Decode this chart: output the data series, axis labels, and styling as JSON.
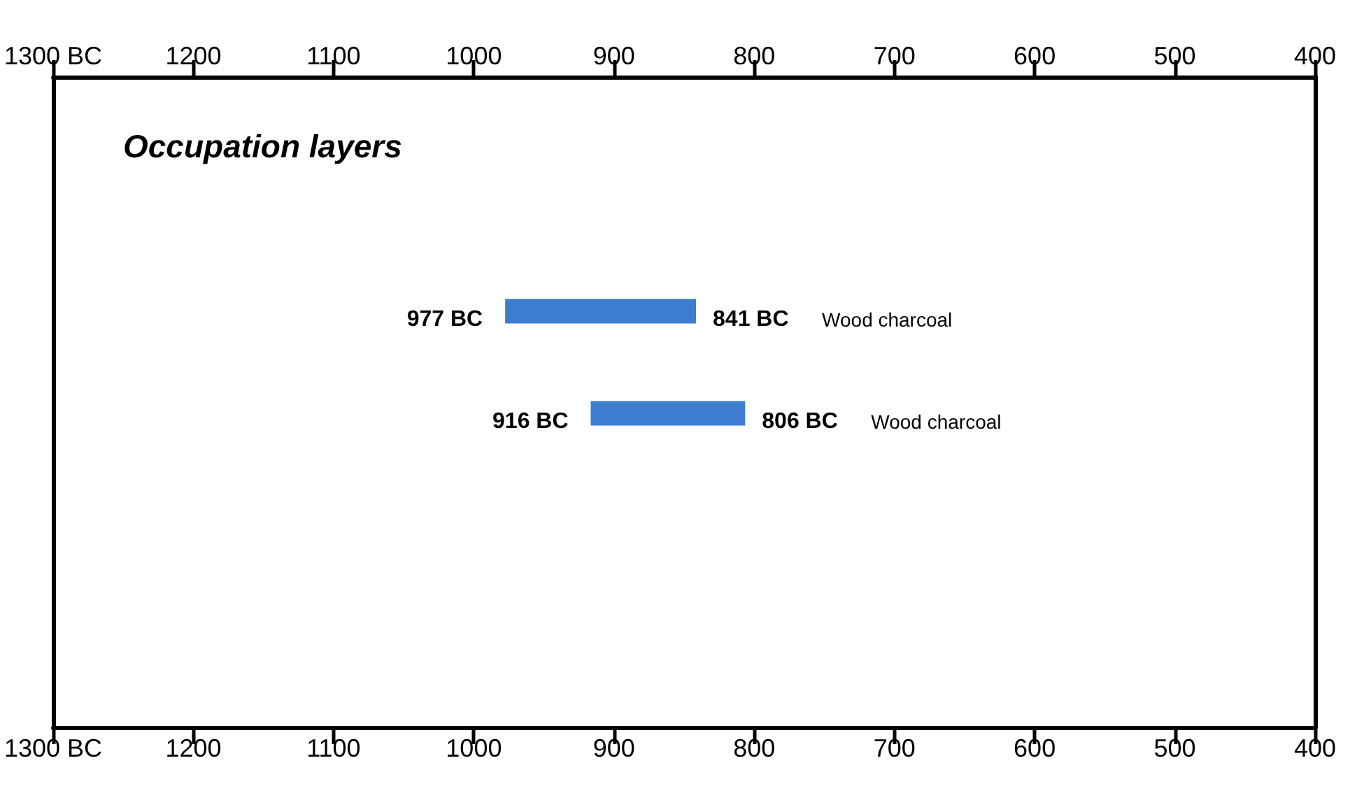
{
  "chart_data": {
    "type": "bar",
    "orientation": "horizontal",
    "title": "Occupation layers",
    "categories": [
      null,
      null
    ],
    "base": [
      841,
      806
    ],
    "values": [
      136,
      110
    ],
    "color": "#3c7dd0",
    "xlim": [
      1300,
      400
    ],
    "xticks": [
      {
        "value": 1300,
        "label": "1300 BC"
      },
      1200,
      1100,
      1000,
      900,
      800,
      700,
      600,
      500,
      400
    ],
    "x2lim": [
      1300,
      400
    ],
    "x2ticks": [
      {
        "value": 1300,
        "label": "1300 BC"
      },
      1200,
      1100,
      1000,
      900,
      800,
      700,
      600,
      500,
      400
    ],
    "annotations": [
      {
        "text": "977 BC",
        "x": 977
      },
      {
        "text": "841 BC",
        "x": 841
      },
      "Wood charcoal",
      {
        "text": "916 BC",
        "x": 916
      },
      {
        "text": "806 BC",
        "x": 806
      },
      "Wood charcoal"
    ],
    "grid": false
  }
}
